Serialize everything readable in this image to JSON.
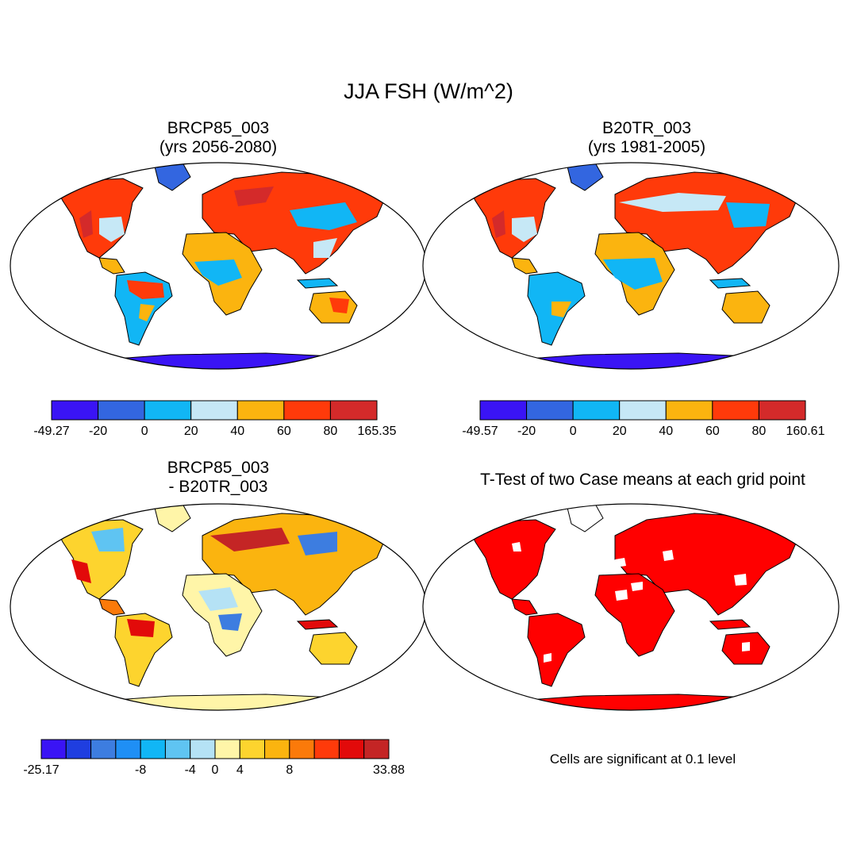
{
  "figure": {
    "title": "JJA FSH (W/m^2)"
  },
  "panels": [
    {
      "title_line1": "BRCP85_003",
      "title_line2": "(yrs 2056-2080)",
      "colorbar": {
        "colors": [
          "#3a14f5",
          "#3366e0",
          "#11b6f5",
          "#c6e8f6",
          "#fbb40f",
          "#ff3a0a",
          "#d42a2a"
        ],
        "labels": [
          "-49.27",
          "-20",
          "0",
          "20",
          "40",
          "60",
          "80",
          "165.35"
        ]
      }
    },
    {
      "title_line1": "B20TR_003",
      "title_line2": "(yrs 1981-2005)",
      "colorbar": {
        "colors": [
          "#3a14f5",
          "#3366e0",
          "#11b6f5",
          "#c6e8f6",
          "#fbb40f",
          "#ff3a0a",
          "#d42a2a"
        ],
        "labels": [
          "-49.57",
          "-20",
          "0",
          "20",
          "40",
          "60",
          "80",
          "160.61"
        ]
      }
    },
    {
      "title_line1": "BRCP85_003",
      "title_line2": "- B20TR_003",
      "colorbar": {
        "colors": [
          "#3a14f5",
          "#1f3ee0",
          "#3d7de0",
          "#1f8ff5",
          "#11b6f5",
          "#5fc4f2",
          "#b5e2f5",
          "#fff5a8",
          "#fdd42e",
          "#fbb40f",
          "#fb7a0a",
          "#ff3a0a",
          "#e20a0a",
          "#c42525"
        ],
        "labels": [
          "-25.17",
          "-8",
          "-4",
          "0",
          "4",
          "8",
          "33.88"
        ]
      }
    },
    {
      "title_line1": "T-Test of two Case means at each grid point",
      "note": "Cells are significant at 0.1 level"
    }
  ]
}
